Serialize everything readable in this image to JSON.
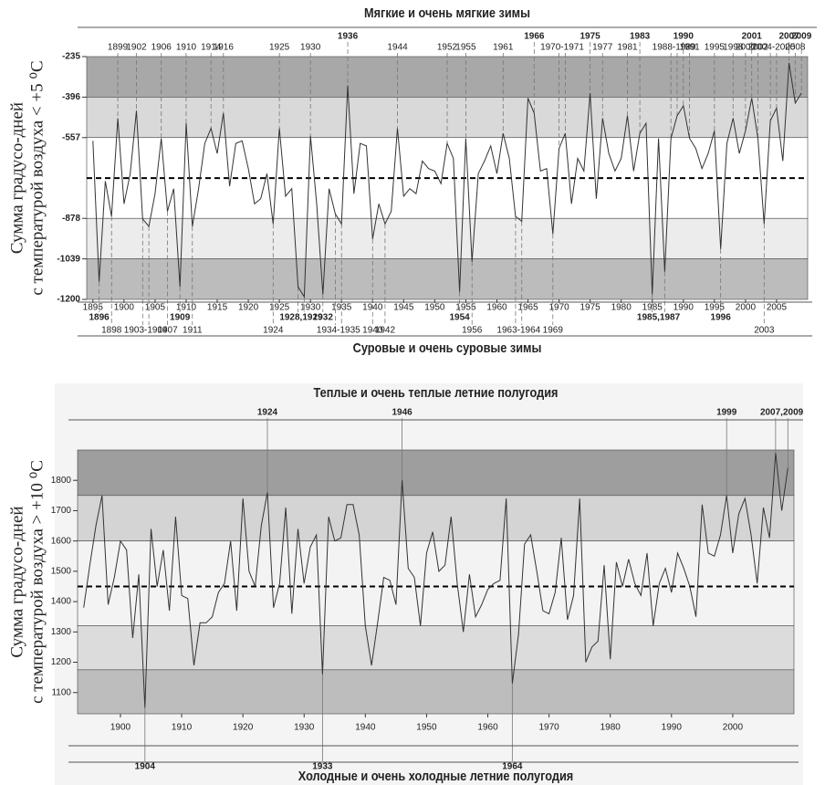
{
  "chart_data": [
    {
      "type": "line",
      "title": "Мягкие и очень мягкие зимы",
      "bottom_title": "Суровые и очень суровые зимы",
      "ylabel": [
        "Сумма градусо-дней",
        "с температурой воздуха < +5 ⁰C"
      ],
      "x": [
        1895,
        1896,
        1897,
        1898,
        1899,
        1900,
        1901,
        1902,
        1903,
        1904,
        1905,
        1906,
        1907,
        1908,
        1909,
        1910,
        1911,
        1912,
        1913,
        1914,
        1915,
        1916,
        1917,
        1918,
        1919,
        1920,
        1921,
        1922,
        1923,
        1924,
        1925,
        1926,
        1927,
        1928,
        1929,
        1930,
        1931,
        1932,
        1933,
        1934,
        1935,
        1936,
        1937,
        1938,
        1939,
        1940,
        1941,
        1942,
        1943,
        1944,
        1945,
        1946,
        1947,
        1948,
        1949,
        1950,
        1951,
        1952,
        1953,
        1954,
        1955,
        1956,
        1957,
        1958,
        1959,
        1960,
        1961,
        1962,
        1963,
        1964,
        1965,
        1966,
        1967,
        1968,
        1969,
        1970,
        1971,
        1972,
        1973,
        1974,
        1975,
        1976,
        1977,
        1978,
        1979,
        1980,
        1981,
        1982,
        1983,
        1984,
        1985,
        1986,
        1987,
        1988,
        1989,
        1990,
        1991,
        1992,
        1993,
        1994,
        1995,
        1996,
        1997,
        1998,
        1999,
        2000,
        2001,
        2002,
        2003,
        2004,
        2005,
        2006,
        2007,
        2008,
        2009
      ],
      "series": [
        {
          "color": "#333333",
          "values": [
            -570,
            -1130,
            -730,
            -870,
            -480,
            -820,
            -700,
            -450,
            -880,
            -910,
            -780,
            -560,
            -850,
            -760,
            -1150,
            -500,
            -910,
            -760,
            -580,
            -520,
            -620,
            -460,
            -750,
            -580,
            -570,
            -680,
            -820,
            -800,
            -700,
            -900,
            -520,
            -790,
            -760,
            -1150,
            -1190,
            -550,
            -820,
            -1180,
            -760,
            -860,
            -900,
            -350,
            -780,
            -580,
            -590,
            -960,
            -820,
            -900,
            -850,
            -520,
            -790,
            -760,
            -780,
            -650,
            -680,
            -690,
            -740,
            -580,
            -640,
            -1170,
            -560,
            -1050,
            -700,
            -650,
            -590,
            -700,
            -540,
            -640,
            -870,
            -890,
            -400,
            -460,
            -690,
            -680,
            -940,
            -600,
            -540,
            -820,
            -640,
            -690,
            -380,
            -800,
            -480,
            -620,
            -690,
            -640,
            -470,
            -690,
            -540,
            -500,
            -1180,
            -560,
            -1090,
            -560,
            -470,
            -430,
            -560,
            -600,
            -680,
            -620,
            -530,
            -1000,
            -580,
            -480,
            -620,
            -530,
            -400,
            -560,
            -900,
            -490,
            -440,
            -650,
            -260,
            -420,
            -380
          ]
        }
      ],
      "xlim": [
        1894,
        2010
      ],
      "xticks": [
        1895,
        1900,
        1905,
        1910,
        1915,
        1920,
        1925,
        1930,
        1935,
        1940,
        1945,
        1950,
        1955,
        1960,
        1965,
        1970,
        1975,
        1980,
        1985,
        1990,
        1995,
        2000,
        2005
      ],
      "ylim": [
        -1200,
        -235
      ],
      "yticks": [
        -235,
        -396,
        -557,
        -878,
        -1039,
        -1200
      ],
      "mean": -718,
      "bands": [
        {
          "from": -396,
          "to": -235,
          "color": "#a8a8a8"
        },
        {
          "from": -557,
          "to": -396,
          "color": "#d9d9d9"
        },
        {
          "from": -878,
          "to": -557,
          "color": "#ffffff"
        },
        {
          "from": -1039,
          "to": -878,
          "color": "#ececec"
        },
        {
          "from": -1200,
          "to": -1039,
          "color": "#bcbcbc"
        }
      ],
      "top_labels": [
        [
          "1936",
          "1966",
          "1975",
          "1983",
          "1990",
          "2001",
          "2007",
          "2009"
        ],
        [
          "1899",
          "1902",
          "1906",
          "1910",
          "1914",
          "1916",
          "1925",
          "1930",
          "1944",
          "1952",
          "1955",
          "1961",
          "1970-1971",
          "1977",
          "1981",
          "1988-1989",
          "1991",
          "1995",
          "1998",
          "2000",
          "2002",
          "2004-2005",
          "2008"
        ]
      ],
      "bottom_labels": [
        [
          "1896",
          "1909",
          "1928,1929",
          "1932",
          "1954",
          "1985,1987",
          "1996"
        ],
        [
          "1898",
          "1903-1904",
          "1907",
          "1911",
          "1924",
          "1934-1935",
          "1940",
          "1942",
          "1956",
          "1963-1964",
          "1969",
          "2003"
        ]
      ]
    },
    {
      "type": "line",
      "title": "Теплые и очень теплые летние полугодия",
      "bottom_title": "Холодные и очень холодные летние полугодия",
      "ylabel": [
        "Сумма градусо-дней",
        "с температурой воздуха > +10 ⁰C"
      ],
      "x": [
        1894,
        1895,
        1896,
        1897,
        1898,
        1899,
        1900,
        1901,
        1902,
        1903,
        1904,
        1905,
        1906,
        1907,
        1908,
        1909,
        1910,
        1911,
        1912,
        1913,
        1914,
        1915,
        1916,
        1917,
        1918,
        1919,
        1920,
        1921,
        1922,
        1923,
        1924,
        1925,
        1926,
        1927,
        1928,
        1929,
        1930,
        1931,
        1932,
        1933,
        1934,
        1935,
        1936,
        1937,
        1938,
        1939,
        1940,
        1941,
        1942,
        1943,
        1944,
        1945,
        1946,
        1947,
        1948,
        1949,
        1950,
        1951,
        1952,
        1953,
        1954,
        1955,
        1956,
        1957,
        1958,
        1959,
        1960,
        1961,
        1962,
        1963,
        1964,
        1965,
        1966,
        1967,
        1968,
        1969,
        1970,
        1971,
        1972,
        1973,
        1974,
        1975,
        1976,
        1977,
        1978,
        1979,
        1980,
        1981,
        1982,
        1983,
        1984,
        1985,
        1986,
        1987,
        1988,
        1989,
        1990,
        1991,
        1992,
        1993,
        1994,
        1995,
        1996,
        1997,
        1998,
        1999,
        2000,
        2001,
        2002,
        2003,
        2004,
        2005,
        2006,
        2007,
        2008,
        2009
      ],
      "series": [
        {
          "color": "#333333",
          "values": [
            1380,
            1520,
            1650,
            1750,
            1390,
            1480,
            1600,
            1570,
            1280,
            1490,
            1050,
            1640,
            1450,
            1570,
            1370,
            1680,
            1420,
            1410,
            1190,
            1330,
            1330,
            1350,
            1430,
            1460,
            1600,
            1370,
            1740,
            1500,
            1450,
            1650,
            1760,
            1380,
            1460,
            1710,
            1360,
            1640,
            1460,
            1580,
            1620,
            1160,
            1680,
            1600,
            1610,
            1720,
            1720,
            1620,
            1320,
            1190,
            1330,
            1480,
            1470,
            1390,
            1800,
            1510,
            1480,
            1320,
            1560,
            1630,
            1500,
            1520,
            1680,
            1460,
            1300,
            1490,
            1350,
            1390,
            1440,
            1460,
            1470,
            1740,
            1130,
            1290,
            1590,
            1620,
            1500,
            1370,
            1360,
            1430,
            1610,
            1340,
            1420,
            1740,
            1200,
            1250,
            1270,
            1520,
            1210,
            1530,
            1450,
            1540,
            1460,
            1420,
            1560,
            1320,
            1460,
            1510,
            1430,
            1560,
            1510,
            1450,
            1350,
            1720,
            1560,
            1550,
            1620,
            1750,
            1560,
            1690,
            1740,
            1620,
            1460,
            1710,
            1610,
            1890,
            1700,
            1840
          ]
        }
      ],
      "xlim": [
        1893,
        2010
      ],
      "xticks": [
        1900,
        1910,
        1920,
        1930,
        1940,
        1950,
        1960,
        1970,
        1980,
        1990,
        2000
      ],
      "ylim": [
        1030,
        1900
      ],
      "yticks": [
        1100,
        1200,
        1300,
        1400,
        1500,
        1600,
        1700,
        1800
      ],
      "mean": 1450,
      "bands": [
        {
          "from": 1750,
          "to": 1900,
          "color": "#9e9e9e"
        },
        {
          "from": 1600,
          "to": 1750,
          "color": "#d4d4d4"
        },
        {
          "from": 1320,
          "to": 1600,
          "color": "#f3f3f3"
        },
        {
          "from": 1175,
          "to": 1320,
          "color": "#dcdcdc"
        },
        {
          "from": 1030,
          "to": 1175,
          "color": "#bdbdbd"
        }
      ],
      "top_labels": [
        [
          "1924",
          "1946",
          "1999",
          "2007,2009"
        ]
      ],
      "bottom_labels": [
        [
          "1904",
          "1933",
          "1964"
        ]
      ]
    }
  ]
}
